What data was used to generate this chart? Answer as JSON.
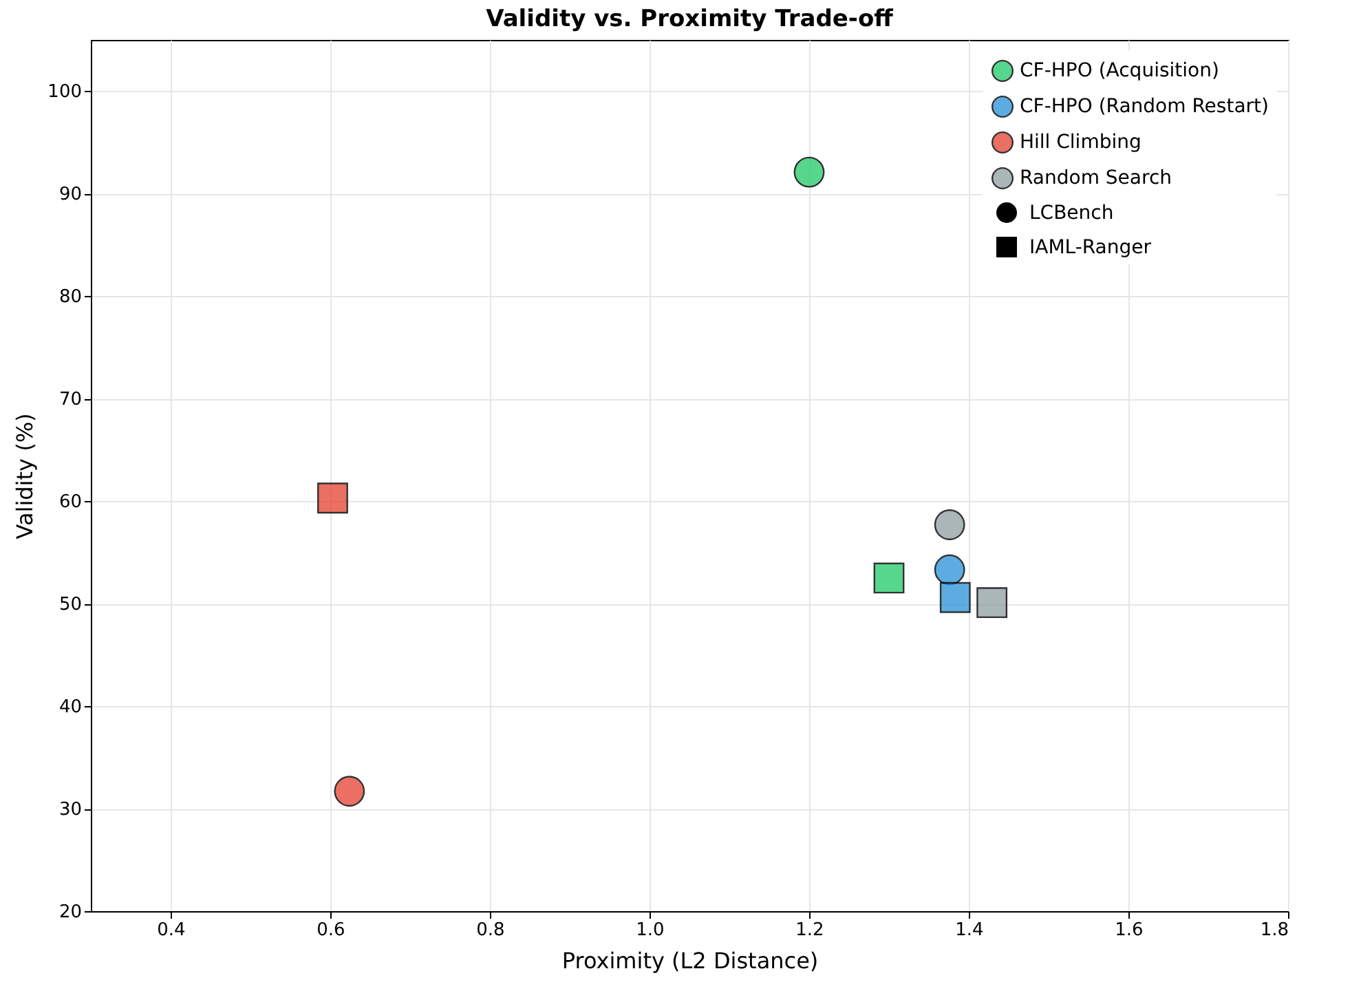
{
  "chart_data": {
    "type": "scatter",
    "title": "Validity vs. Proximity Trade-off",
    "xlabel": "Proximity (L2 Distance)",
    "ylabel": "Validity (%)",
    "series": [
      {
        "name": "CF-HPO (Acquisition)",
        "color": "#2ecc71",
        "marker": "circle",
        "x": [
          1.2
        ],
        "values": [
          92.1
        ]
      },
      {
        "name": "CF-HPO (Random Restart)",
        "color": "#3498db",
        "marker": "circle",
        "x": [
          1.376
        ],
        "values": [
          53.3
        ]
      },
      {
        "name": "Hill Climbing",
        "color": "#e74c3c",
        "marker": "circle",
        "x": [
          0.624
        ],
        "values": [
          31.7
        ]
      },
      {
        "name": "Random Search",
        "color": "#95a5a6",
        "marker": "circle",
        "x": [
          1.376
        ],
        "values": [
          57.7
        ]
      },
      {
        "color": "#2ecc71",
        "marker": "square",
        "x": [
          1.3
        ],
        "values": [
          52.5
        ]
      },
      {
        "color": "#3498db",
        "marker": "square",
        "x": [
          1.383
        ],
        "values": [
          50.6
        ]
      },
      {
        "color": "#e74c3c",
        "marker": "square",
        "x": [
          0.603
        ],
        "values": [
          60.3
        ]
      },
      {
        "color": "#95a5a6",
        "marker": "square",
        "x": [
          1.429
        ],
        "values": [
          50.1
        ]
      }
    ],
    "annotations": [
      "LCBench",
      "IAML-Ranger"
    ],
    "xlim": [
      0.3,
      1.8
    ],
    "xticks": [
      0.4,
      0.6,
      0.8,
      {
        "value": 1,
        "label": "1.0"
      },
      1.2,
      1.4,
      1.6,
      1.8
    ],
    "ylim": [
      20,
      105
    ],
    "yticks": [
      20,
      30,
      40,
      50,
      60,
      70,
      80,
      90,
      100
    ],
    "grid": true,
    "legend": "top right"
  }
}
